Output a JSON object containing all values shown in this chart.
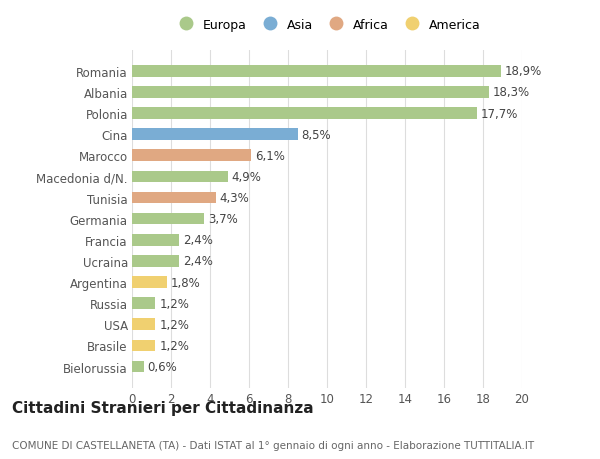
{
  "categories": [
    "Bielorussia",
    "Brasile",
    "USA",
    "Russia",
    "Argentina",
    "Ucraina",
    "Francia",
    "Germania",
    "Tunisia",
    "Macedonia d/N.",
    "Marocco",
    "Cina",
    "Polonia",
    "Albania",
    "Romania"
  ],
  "values": [
    0.6,
    1.2,
    1.2,
    1.2,
    1.8,
    2.4,
    2.4,
    3.7,
    4.3,
    4.9,
    6.1,
    8.5,
    17.7,
    18.3,
    18.9
  ],
  "labels": [
    "0,6%",
    "1,2%",
    "1,2%",
    "1,2%",
    "1,8%",
    "2,4%",
    "2,4%",
    "3,7%",
    "4,3%",
    "4,9%",
    "6,1%",
    "8,5%",
    "17,7%",
    "18,3%",
    "18,9%"
  ],
  "continents": [
    "Europa",
    "America",
    "America",
    "Europa",
    "America",
    "Europa",
    "Europa",
    "Europa",
    "Africa",
    "Europa",
    "Africa",
    "Asia",
    "Europa",
    "Europa",
    "Europa"
  ],
  "colors": {
    "Europa": "#aac98a",
    "Asia": "#7aadd4",
    "Africa": "#e0a882",
    "America": "#f0d070"
  },
  "legend_order": [
    "Europa",
    "Asia",
    "Africa",
    "America"
  ],
  "title": "Cittadini Stranieri per Cittadinanza",
  "subtitle": "COMUNE DI CASTELLANETA (TA) - Dati ISTAT al 1° gennaio di ogni anno - Elaborazione TUTTITALIA.IT",
  "xlim": [
    0,
    20
  ],
  "xticks": [
    0,
    2,
    4,
    6,
    8,
    10,
    12,
    14,
    16,
    18,
    20
  ],
  "bg_color": "#ffffff",
  "grid_color": "#dddddd",
  "title_fontsize": 11,
  "subtitle_fontsize": 7.5,
  "label_fontsize": 8.5,
  "tick_fontsize": 8.5,
  "legend_fontsize": 9
}
